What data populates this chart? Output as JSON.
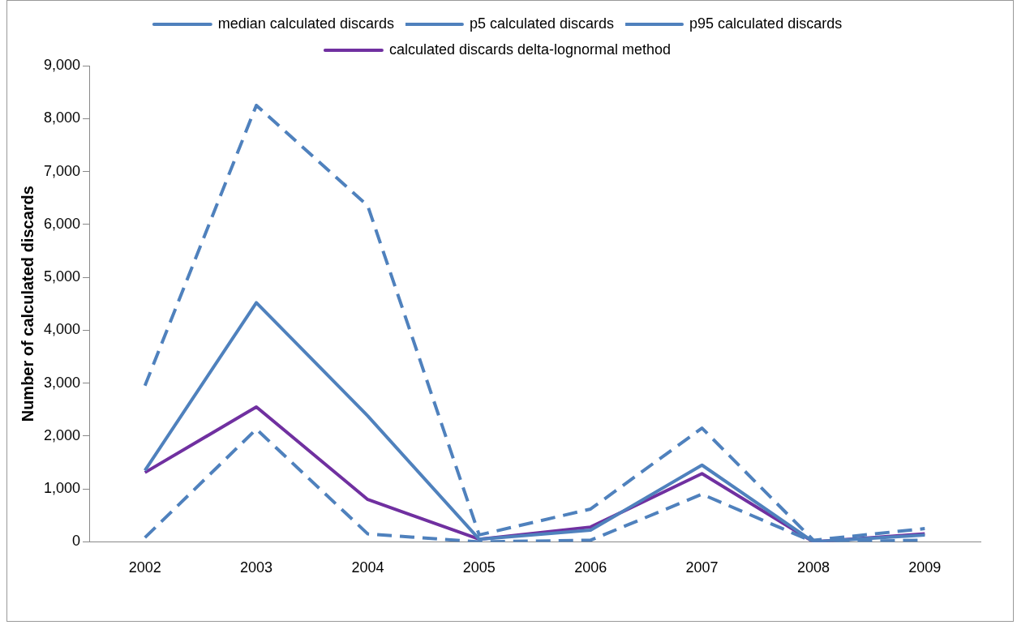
{
  "chart_data": {
    "type": "line",
    "ylabel": "Number of calculated discards",
    "categories": [
      "2002",
      "2003",
      "2004",
      "2005",
      "2006",
      "2007",
      "2008",
      "2009"
    ],
    "series": [
      {
        "name": "median calculated discards",
        "color": "#4f81bd",
        "line_style": "solid",
        "values": [
          1350,
          4520,
          2380,
          50,
          220,
          1450,
          0,
          130
        ]
      },
      {
        "name": "p5 calculated discards",
        "color": "#4f81bd",
        "line_style": "dashed",
        "values": [
          80,
          2130,
          150,
          0,
          30,
          900,
          0,
          30
        ]
      },
      {
        "name": "p95 calculated discards",
        "color": "#4f81bd",
        "line_style": "dashed",
        "values": [
          2950,
          8250,
          6350,
          130,
          620,
          2150,
          30,
          250
        ]
      },
      {
        "name": "calculated discards delta-lognormal method",
        "color": "#7030a0",
        "line_style": "solid",
        "values": [
          1310,
          2550,
          800,
          50,
          280,
          1290,
          0,
          150
        ]
      }
    ],
    "ylim": [
      0,
      9000
    ],
    "yticks": [
      0,
      {
        "value": 1000,
        "label": "1,000"
      },
      {
        "value": 2000,
        "label": "2,000"
      },
      {
        "value": 3000,
        "label": "3,000"
      },
      {
        "value": 4000,
        "label": "4,000"
      },
      {
        "value": 5000,
        "label": "5,000"
      },
      {
        "value": 6000,
        "label": "6,000"
      },
      {
        "value": 7000,
        "label": "7,000"
      },
      {
        "value": 8000,
        "label": "8,000"
      },
      {
        "value": 9000,
        "label": "9,000"
      }
    ],
    "grid": false,
    "legend": "top",
    "marker": "none"
  }
}
